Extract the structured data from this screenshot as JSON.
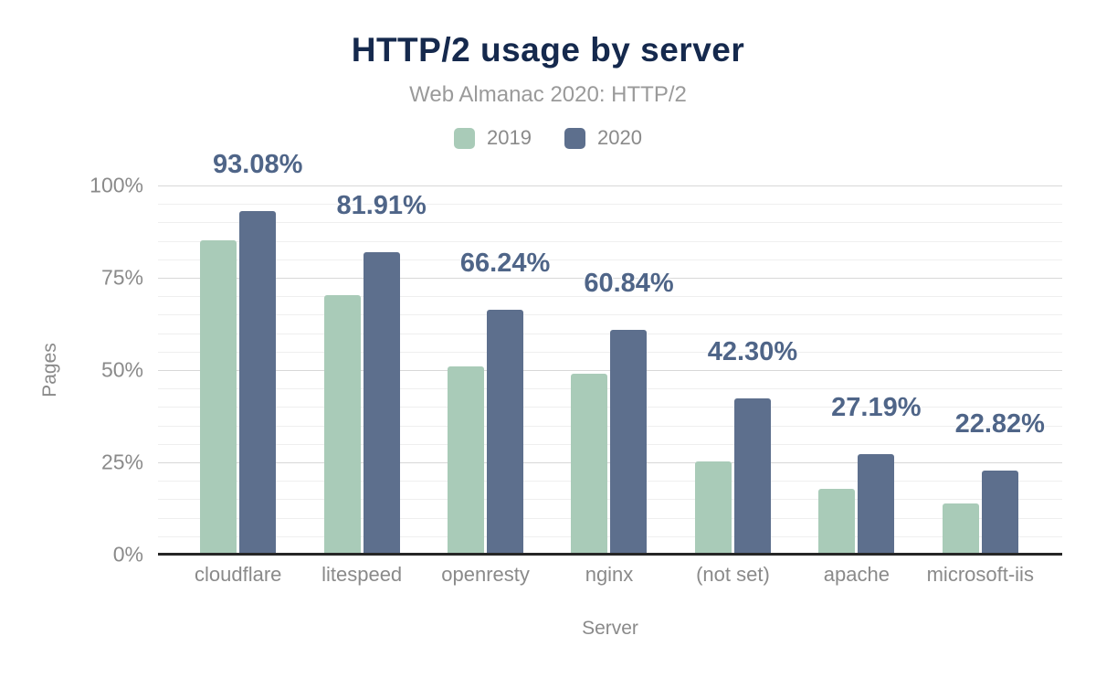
{
  "figure": {
    "title": "HTTP/2 usage by server",
    "subtitle": "Web Almanac 2020: HTTP/2"
  },
  "chart_data": {
    "type": "bar",
    "title": "HTTP/2 usage by server",
    "subtitle": "Web Almanac 2020: HTTP/2",
    "xlabel": "Server",
    "ylabel": "Pages",
    "categories": [
      "cloudflare",
      "litespeed",
      "openresty",
      "nginx",
      "(not set)",
      "apache",
      "microsoft-iis"
    ],
    "series": [
      {
        "name": "2019",
        "color": "#a9cbb8",
        "values": [
          85.2,
          70.3,
          51.0,
          48.9,
          25.3,
          17.9,
          13.9
        ]
      },
      {
        "name": "2020",
        "color": "#5d6f8d",
        "values": [
          93.08,
          81.91,
          66.24,
          60.84,
          42.3,
          27.19,
          22.82
        ],
        "data_labels": [
          "93.08%",
          "81.91%",
          "66.24%",
          "60.84%",
          "42.30%",
          "27.19%",
          "22.82%"
        ]
      }
    ],
    "y_ticks": [
      "0%",
      "25%",
      "50%",
      "75%",
      "100%"
    ],
    "ylim": [
      0,
      100
    ],
    "minor_gridline_step": 5,
    "major_gridline_step": 25,
    "grid": true,
    "legend_position": "top"
  },
  "colors": {
    "background": "#ffffff",
    "title": "#15294d",
    "subtitle": "#9a9a9a",
    "axis_text": "#8a8a8a",
    "data_label": "#4f6588",
    "series_2019": "#a9cbb8",
    "series_2020": "#5d6f8d",
    "major_gridline": "#d8d8d8",
    "minor_gridline": "#efefef",
    "zero_line": "#262626"
  }
}
